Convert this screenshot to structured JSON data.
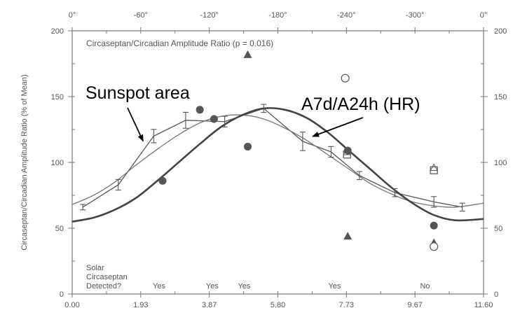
{
  "chart_data": {
    "type": "line",
    "title": "Circaseptan/Circadian Amplitude Ratio (p = 0.016)",
    "ylabel": "Circaseptan/Circadian Amplitude Ratio (% of Mean)",
    "xlabel": "",
    "xlim": [
      0,
      11.6
    ],
    "ylim": [
      0,
      200
    ],
    "x_ticks": [
      "0.00",
      "1.93",
      "3.87",
      "5.80",
      "7.73",
      "9.67",
      "11.60"
    ],
    "y_ticks": [
      "0",
      "50",
      "100",
      "150",
      "200"
    ],
    "y_ticks_right": [
      "0",
      "50",
      "100",
      "150",
      "200"
    ],
    "top_axis_ticks": [
      "0°",
      "-60°",
      "-120°",
      "-180°",
      "-240°",
      "-300°",
      "0°"
    ],
    "grid": false,
    "series": [
      {
        "name": "Sunspot area",
        "style": "errorbar-line",
        "color": "#555555",
        "x": [
          0.3,
          1.3,
          2.3,
          3.2,
          4.3,
          5.4,
          6.5,
          7.3,
          8.1,
          9.1,
          10.2,
          11.0
        ],
        "y": [
          66,
          83,
          120,
          132,
          131,
          141,
          116,
          108,
          90,
          77,
          70,
          66
        ],
        "err": [
          1,
          3,
          4,
          5,
          3,
          2,
          6,
          3,
          2,
          2,
          3,
          2
        ]
      },
      {
        "name": "",
        "style": "thin-fit",
        "color": "#777777",
        "x": [
          0.0,
          0.6,
          1.2,
          1.8,
          2.4,
          3.0,
          3.6,
          4.2,
          4.8,
          5.4,
          6.0,
          6.6,
          7.2,
          7.8,
          8.4,
          9.0,
          9.6,
          10.2,
          10.8,
          11.6
        ],
        "y": [
          68,
          75,
          85,
          98,
          110,
          121,
          130,
          135,
          136,
          133,
          126,
          117,
          106,
          95,
          84,
          76,
          70,
          67,
          66,
          69
        ]
      },
      {
        "name": "A7d/A24h (HR)",
        "style": "thick-fit",
        "color": "#444444",
        "x": [
          0.0,
          0.6,
          1.2,
          1.8,
          2.4,
          3.0,
          3.6,
          4.2,
          4.8,
          5.4,
          6.0,
          6.6,
          7.2,
          7.8,
          8.4,
          9.0,
          9.6,
          10.2,
          10.8,
          11.6
        ],
        "y": [
          55,
          58,
          64,
          73,
          86,
          100,
          114,
          127,
          136,
          141,
          140,
          134,
          123,
          109,
          95,
          81,
          69,
          60,
          56,
          57
        ]
      }
    ],
    "markers": {
      "filled_circles": [
        {
          "x": 2.55,
          "y": 86
        },
        {
          "x": 3.6,
          "y": 140
        },
        {
          "x": 4.0,
          "y": 133
        },
        {
          "x": 4.95,
          "y": 112
        },
        {
          "x": 7.77,
          "y": 109
        },
        {
          "x": 10.2,
          "y": 52
        }
      ],
      "filled_triangles": [
        {
          "x": 4.95,
          "y": 182
        },
        {
          "x": 7.77,
          "y": 44
        },
        {
          "x": 10.2,
          "y": 39
        }
      ],
      "open_circles": [
        {
          "x": 7.7,
          "y": 164
        },
        {
          "x": 10.2,
          "y": 36
        }
      ],
      "open_squares": [
        {
          "x": 7.75,
          "y": 106
        },
        {
          "x": 10.2,
          "y": 94
        }
      ],
      "open_triangles": [
        {
          "x": 7.75,
          "y": 108
        },
        {
          "x": 10.2,
          "y": 96
        }
      ]
    },
    "solar_label": [
      "Solar",
      "Circaseptan",
      "Detected?"
    ],
    "solar_detected": [
      {
        "x": 2.45,
        "label": "Yes"
      },
      {
        "x": 3.95,
        "label": "Yes"
      },
      {
        "x": 4.85,
        "label": "Yes"
      },
      {
        "x": 7.4,
        "label": "Yes"
      },
      {
        "x": 9.95,
        "label": "No"
      }
    ],
    "annotations": [
      {
        "text": "Sunspot area",
        "x": 2.0,
        "y": 122
      },
      {
        "text": "A7d/A24h (HR)",
        "x": 6.7,
        "y": 124
      }
    ]
  }
}
